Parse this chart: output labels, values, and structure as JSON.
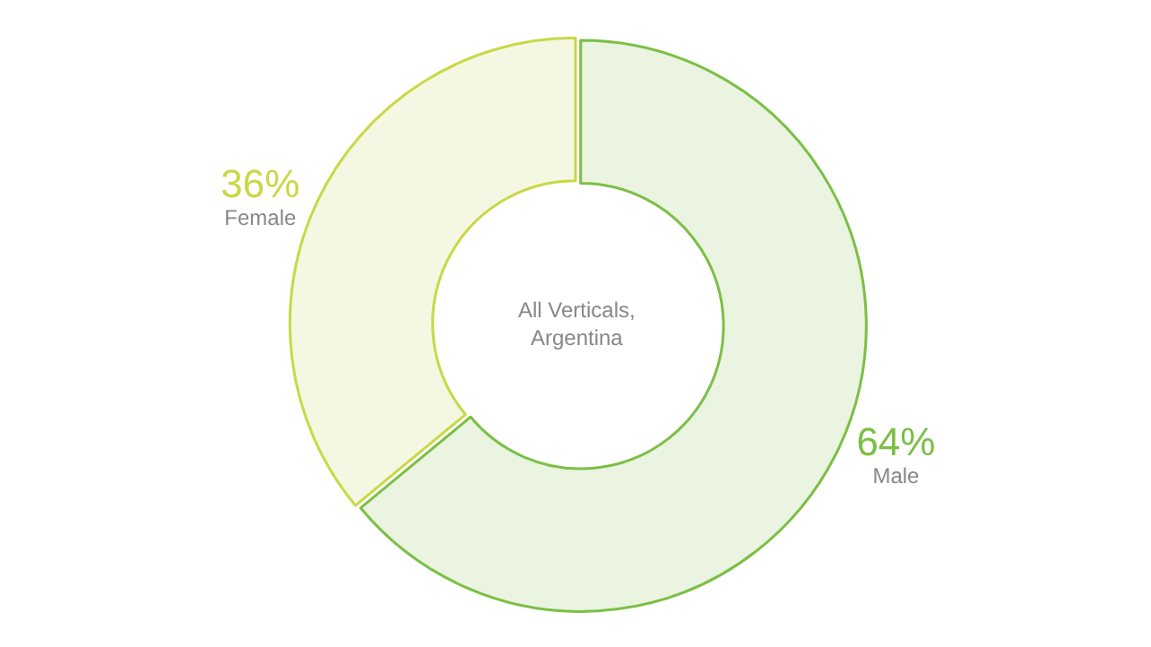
{
  "chart_data": {
    "type": "donut",
    "title": "All Verticals,\nArgentina",
    "categories": [
      "Male",
      "Female"
    ],
    "values": [
      64,
      36
    ],
    "colors": [
      "#eaf4e0",
      "#f4f7e1"
    ],
    "value_labels": [
      "64%",
      "36%"
    ],
    "legend": false
  }
}
